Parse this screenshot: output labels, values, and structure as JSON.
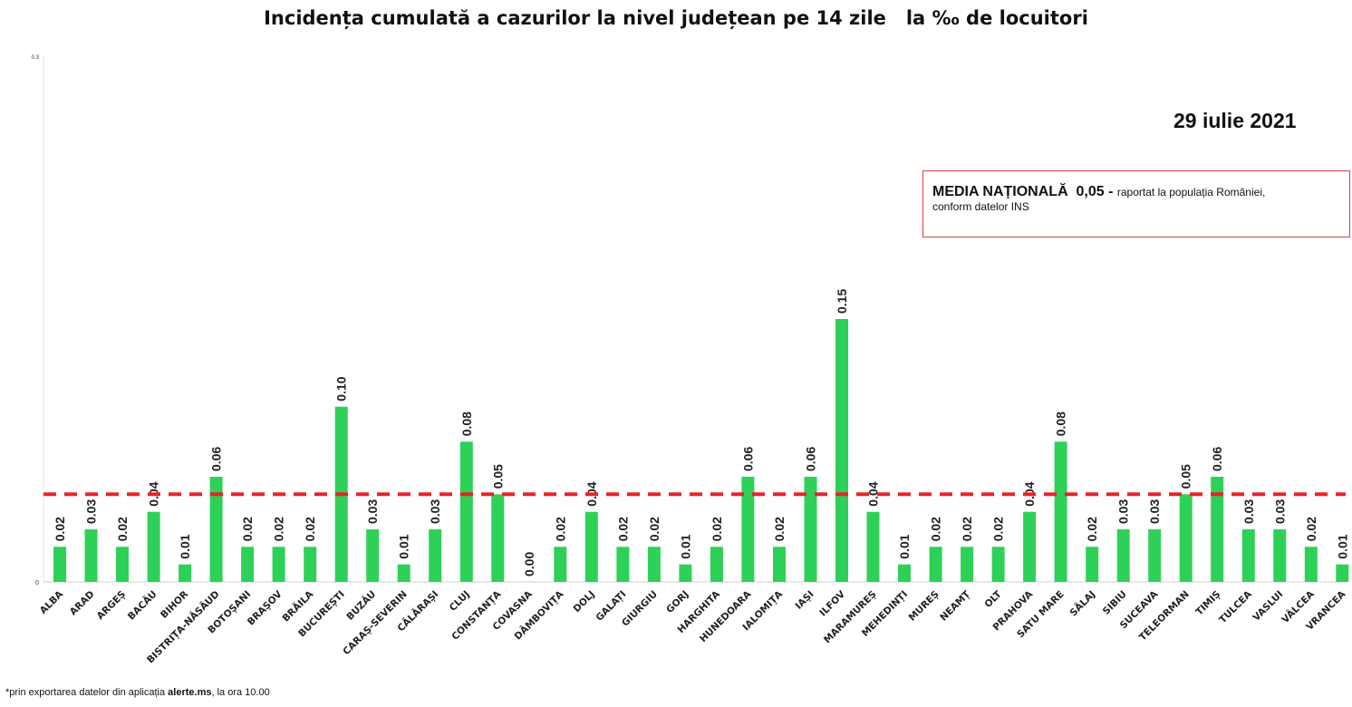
{
  "title": "Incidența cumulată a cazurilor la nivel județean pe 14 zile   la ‰ de locuitori",
  "date": "29 iulie 2021",
  "media": {
    "label": "MEDIA NAȚIONALĂ",
    "value": "0,05 -",
    "note_line1": "raportat la populația României,",
    "note_line2": "conform datelor INS"
  },
  "footnote": {
    "prefix": "*prin exportarea datelor din aplicația ",
    "app": "alerte.ms",
    "suffix": ", la ora 10.00"
  },
  "colors": {
    "bar": "#2ed157",
    "average_line": "#e8232a",
    "box_border": "#d94040"
  },
  "chart_data": {
    "type": "bar",
    "title": "Incidența cumulată a cazurilor la nivel județean pe 14 zile   la ‰ de locuitori",
    "ylim": [
      0,
      0.3
    ],
    "yticks": [
      "0",
      "0.3"
    ],
    "grid": false,
    "national_average": 0.05,
    "categories": [
      "ALBA",
      "ARAD",
      "ARGEȘ",
      "BACĂU",
      "BIHOR",
      "BISTRIȚA-NĂSĂUD",
      "BOTOȘANI",
      "BRAȘOV",
      "BRĂILA",
      "BUCUREȘTI",
      "BUZĂU",
      "CARAȘ-SEVERIN",
      "CĂLĂRAȘI",
      "CLUJ",
      "CONSTANȚA",
      "COVASNA",
      "DÂMBOVIȚA",
      "DOLJ",
      "GALAȚI",
      "GIURGIU",
      "GORJ",
      "HARGHITA",
      "HUNEDOARA",
      "IALOMIȚA",
      "IAȘI",
      "ILFOV",
      "MARAMUREȘ",
      "MEHEDINȚI",
      "MUREȘ",
      "NEAMȚ",
      "OLT",
      "PRAHOVA",
      "SATU MARE",
      "SĂLAJ",
      "SIBIU",
      "SUCEAVA",
      "TELEORMAN",
      "TIMIȘ",
      "TULCEA",
      "VASLUI",
      "VÂLCEA",
      "VRANCEA"
    ],
    "values": [
      0.02,
      0.03,
      0.02,
      0.04,
      0.01,
      0.06,
      0.02,
      0.02,
      0.02,
      0.1,
      0.03,
      0.01,
      0.03,
      0.08,
      0.05,
      0.0,
      0.02,
      0.04,
      0.02,
      0.02,
      0.01,
      0.02,
      0.06,
      0.02,
      0.06,
      0.15,
      0.04,
      0.01,
      0.02,
      0.02,
      0.02,
      0.04,
      0.08,
      0.02,
      0.03,
      0.03,
      0.05,
      0.06,
      0.03,
      0.03,
      0.02,
      0.01
    ],
    "labels": [
      "0.02",
      "0.03",
      "0.02",
      "0.04",
      "0.01",
      "0.06",
      "0.02",
      "0.02",
      "0.02",
      "0.10",
      "0.03",
      "0.01",
      "0.03",
      "0.08",
      "0.05",
      "0.00",
      "0.02",
      "0.04",
      "0.02",
      "0.02",
      "0.01",
      "0.02",
      "0.06",
      "0.02",
      "0.06",
      "0.15",
      "0.04",
      "0.01",
      "0.02",
      "0.02",
      "0.02",
      "0.04",
      "0.08",
      "0.02",
      "0.03",
      "0.03",
      "0.05",
      "0.06",
      "0.03",
      "0.03",
      "0.02",
      "0.01"
    ]
  }
}
